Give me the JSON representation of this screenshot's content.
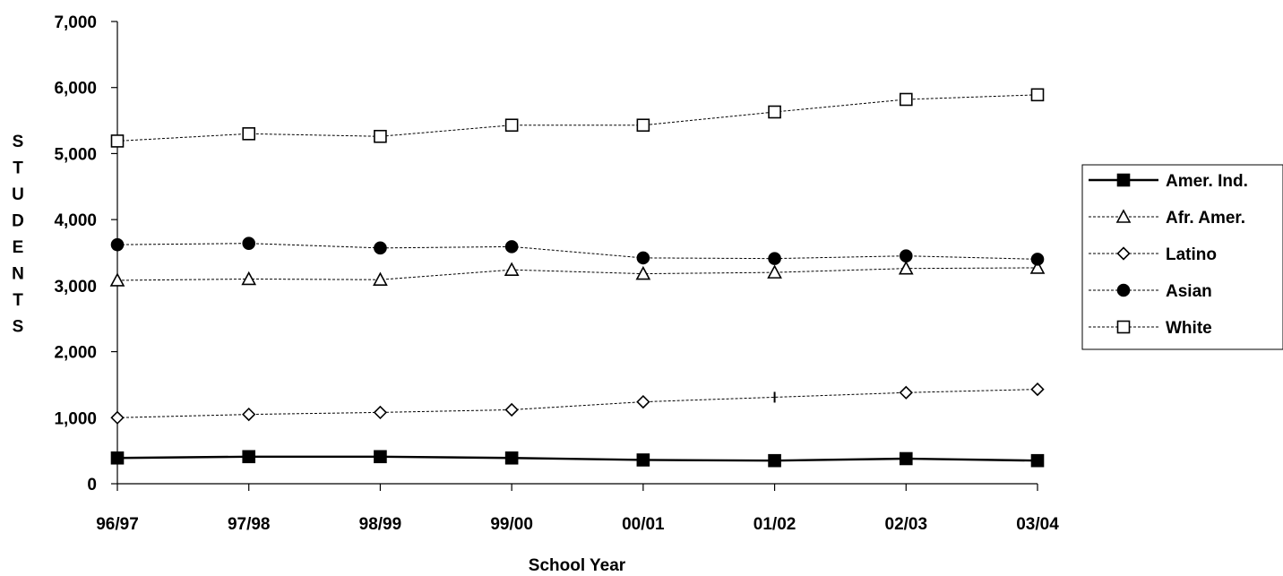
{
  "chart_data": {
    "type": "line",
    "title": "",
    "xlabel": "School Year",
    "ylabel": "STUDENTS",
    "categories": [
      "96/97",
      "97/98",
      "98/99",
      "99/00",
      "00/01",
      "01/02",
      "02/03",
      "03/04"
    ],
    "ylim": [
      0,
      7000
    ],
    "yticks": [
      0,
      1000,
      2000,
      3000,
      4000,
      5000,
      6000,
      7000
    ],
    "ytick_labels": [
      "0",
      "1,000",
      "2,000",
      "3,000",
      "4,000",
      "5,000",
      "6,000",
      "7,000"
    ],
    "grid": false,
    "legend_position": "right",
    "series": [
      {
        "name": "Amer. Ind.",
        "marker": "filled-square",
        "line": "solid",
        "color": "#000000",
        "values": [
          390,
          410,
          410,
          390,
          360,
          350,
          380,
          350
        ]
      },
      {
        "name": "Afr. Amer.",
        "marker": "open-triangle",
        "line": "dotted",
        "color": "#000000",
        "values": [
          3080,
          3100,
          3090,
          3240,
          3180,
          3200,
          3260,
          3270
        ]
      },
      {
        "name": "Latino",
        "marker": "open-diamond",
        "line": "dotted",
        "color": "#000000",
        "values": [
          1000,
          1050,
          1080,
          1120,
          1240,
          1310,
          1380,
          1430
        ]
      },
      {
        "name": "Asian",
        "marker": "filled-circle",
        "line": "dotted",
        "color": "#000000",
        "values": [
          3620,
          3640,
          3570,
          3590,
          3420,
          3410,
          3450,
          3400
        ]
      },
      {
        "name": "White",
        "marker": "open-square",
        "line": "dotted",
        "color": "#000000",
        "values": [
          5190,
          5300,
          5260,
          5430,
          5430,
          5630,
          5820,
          5890
        ]
      }
    ]
  }
}
